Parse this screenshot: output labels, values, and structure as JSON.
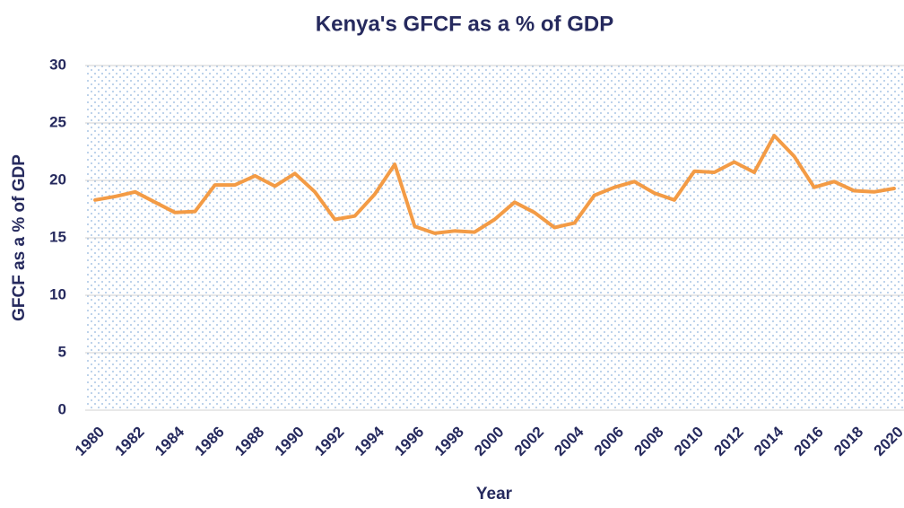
{
  "chart_data": {
    "type": "line",
    "title": "Kenya's GFCF as a % of GDP",
    "x_label": "Year",
    "y_label": "GFCF as a % of GDP",
    "categories": [
      "1980",
      null,
      "1982",
      null,
      "1984",
      null,
      "1986",
      null,
      "1988",
      null,
      "1990",
      null,
      "1992",
      null,
      "1994",
      null,
      "1996",
      null,
      "1998",
      null,
      "2000",
      null,
      "2002",
      null,
      "2004",
      null,
      "2006",
      null,
      "2008",
      null,
      "2010",
      null,
      "2012",
      null,
      "2014",
      null,
      "2016",
      null,
      "2018",
      null,
      "2020"
    ],
    "series": [
      {
        "name": "GFCF as a % of GDP",
        "color": "#f39b45",
        "values": [
          18.3,
          18.6,
          19.0,
          18.1,
          17.2,
          17.3,
          19.6,
          19.6,
          20.4,
          19.5,
          20.6,
          19.0,
          16.6,
          16.9,
          18.8,
          21.4,
          16.0,
          15.4,
          15.6,
          15.5,
          16.6,
          18.1,
          17.2,
          15.9,
          16.3,
          18.7,
          19.4,
          19.9,
          18.9,
          18.3,
          20.8,
          20.7,
          21.6,
          20.7,
          23.9,
          22.1,
          19.4,
          19.9,
          19.1,
          19.0,
          19.3
        ]
      }
    ],
    "ylim": [
      0,
      30
    ],
    "yticks": [
      0,
      5,
      10,
      15,
      20,
      25,
      30
    ],
    "grid": true
  }
}
